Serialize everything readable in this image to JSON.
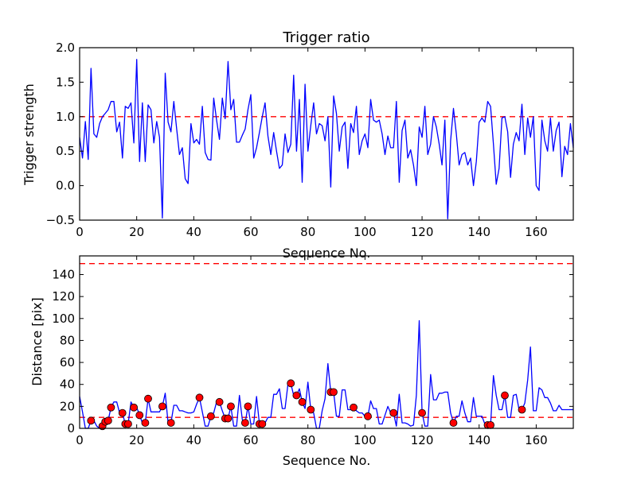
{
  "chart_data": [
    {
      "type": "line",
      "title": "Trigger ratio",
      "xlabel": "Sequence No.",
      "ylabel": "Trigger strength",
      "xlim": [
        0,
        173
      ],
      "ylim": [
        -0.5,
        2.0
      ],
      "xticks": [
        0,
        20,
        40,
        60,
        80,
        100,
        120,
        140,
        160
      ],
      "yticks": [
        -0.5,
        0.0,
        0.5,
        1.0,
        1.5,
        2.0
      ],
      "ytick_labels": [
        "−0.5",
        "0.0",
        "0.5",
        "1.0",
        "1.5",
        "2.0"
      ],
      "grid": false,
      "threshold": {
        "value": 1.0,
        "color": "#ff0000",
        "style": "dashed"
      },
      "series": [
        {
          "name": "trigger strength",
          "color": "#0000ff",
          "values": [
            0.7,
            0.4,
            0.93,
            0.38,
            1.7,
            0.75,
            0.7,
            0.9,
            1.0,
            1.05,
            1.1,
            1.22,
            1.22,
            0.78,
            0.92,
            0.4,
            1.15,
            1.12,
            1.2,
            0.62,
            1.83,
            0.35,
            1.2,
            0.35,
            1.17,
            1.1,
            0.62,
            0.93,
            0.7,
            -0.47,
            1.63,
            0.92,
            0.78,
            1.22,
            0.83,
            0.45,
            0.55,
            0.1,
            0.03,
            0.9,
            0.62,
            0.67,
            0.6,
            1.15,
            0.48,
            0.38,
            0.37,
            1.27,
            0.95,
            0.67,
            1.27,
            0.97,
            1.8,
            1.1,
            1.25,
            0.63,
            0.63,
            0.73,
            0.82,
            1.1,
            1.32,
            0.4,
            0.55,
            0.77,
            1.0,
            1.2,
            0.72,
            0.45,
            0.77,
            0.5,
            0.25,
            0.3,
            0.75,
            0.48,
            0.6,
            1.6,
            0.5,
            1.25,
            0.05,
            1.47,
            0.5,
            0.87,
            1.2,
            0.75,
            0.9,
            0.87,
            0.65,
            1.0,
            -0.02,
            1.3,
            1.05,
            0.5,
            0.85,
            0.92,
            0.25,
            0.9,
            0.77,
            1.15,
            0.45,
            0.65,
            0.75,
            0.55,
            1.25,
            0.95,
            0.92,
            0.95,
            0.75,
            0.45,
            0.72,
            0.55,
            0.55,
            1.22,
            0.05,
            0.8,
            0.95,
            0.4,
            0.52,
            0.3,
            0.0,
            0.85,
            0.7,
            1.15,
            0.45,
            0.6,
            1.0,
            0.85,
            0.6,
            0.3,
            0.95,
            -0.48,
            0.65,
            1.12,
            0.75,
            0.3,
            0.45,
            0.48,
            0.3,
            0.4,
            0.0,
            0.35,
            0.92,
            0.98,
            0.92,
            1.22,
            1.15,
            0.6,
            0.02,
            0.25,
            0.98,
            1.0,
            0.78,
            0.12,
            0.6,
            0.77,
            0.65,
            1.18,
            0.45,
            0.98,
            0.7,
            1.0,
            0.0,
            -0.07,
            0.95,
            0.65,
            0.5,
            0.98,
            0.5,
            0.8,
            0.92,
            0.13,
            0.57,
            0.45,
            0.9,
            0.55
          ]
        }
      ]
    },
    {
      "type": "line",
      "title": "",
      "xlabel": "Sequence No.",
      "ylabel": "Distance [pix]",
      "xlim": [
        0,
        173
      ],
      "ylim": [
        0,
        157
      ],
      "xticks": [
        0,
        20,
        40,
        60,
        80,
        100,
        120,
        140,
        160
      ],
      "yticks": [
        0,
        20,
        40,
        60,
        80,
        100,
        120,
        140
      ],
      "ytick_labels": [
        "0",
        "20",
        "40",
        "60",
        "80",
        "100",
        "120",
        "140"
      ],
      "grid": false,
      "thresholds": [
        {
          "value": 10,
          "color": "#ff0000",
          "style": "dashed"
        },
        {
          "value": 150,
          "color": "#ff0000",
          "style": "dashed"
        }
      ],
      "series": [
        {
          "name": "distance",
          "color": "#0000ff",
          "values": [
            29,
            15,
            0,
            0,
            7,
            7,
            2,
            0,
            2,
            6,
            7,
            19,
            24,
            24,
            14,
            14,
            4,
            4,
            24,
            19,
            19,
            12,
            5,
            5,
            27,
            15,
            15,
            15,
            15,
            20,
            32,
            5,
            5,
            21,
            21,
            16,
            16,
            15,
            14,
            14,
            15,
            22,
            28,
            15,
            2,
            2,
            11,
            14,
            24,
            24,
            16,
            9,
            9,
            20,
            2,
            2,
            30,
            8,
            5,
            20,
            4,
            4,
            29,
            4,
            4,
            5,
            10,
            10,
            31,
            31,
            36,
            18,
            18,
            40,
            41,
            30,
            30,
            36,
            24,
            18,
            42,
            17,
            14,
            0,
            0,
            16,
            27,
            59,
            33,
            33,
            11,
            11,
            35,
            35,
            17,
            17,
            19,
            16,
            14,
            14,
            11,
            11,
            25,
            18,
            18,
            4,
            4,
            12,
            20,
            14,
            14,
            2,
            31,
            5,
            5,
            4,
            2,
            3,
            30,
            98,
            14,
            2,
            2,
            49,
            26,
            26,
            32,
            32,
            33,
            33,
            14,
            5,
            11,
            11,
            25,
            14,
            6,
            6,
            28,
            11,
            11,
            11,
            4,
            3,
            3,
            48,
            30,
            17,
            17,
            30,
            10,
            10,
            30,
            31,
            17,
            17,
            23,
            44,
            74,
            16,
            16,
            37,
            35,
            28,
            28,
            23,
            16,
            16,
            21,
            17,
            17,
            17,
            17,
            17
          ]
        },
        {
          "name": "flagged points",
          "type": "scatter",
          "color": "#ff0000",
          "x": [
            4,
            8,
            9,
            10,
            11,
            15,
            16,
            17,
            19,
            21,
            23,
            24,
            29,
            32,
            42,
            46,
            49,
            51,
            52,
            53,
            58,
            59,
            63,
            64,
            74,
            76,
            78,
            81,
            88,
            89,
            96,
            101,
            110,
            120,
            131,
            143,
            144,
            149,
            155
          ],
          "y": [
            7,
            2,
            6,
            7,
            19,
            14,
            4,
            4,
            19,
            12,
            5,
            27,
            20,
            5,
            28,
            11,
            24,
            9,
            9,
            20,
            5,
            20,
            4,
            4,
            41,
            30,
            24,
            17,
            33,
            33,
            19,
            11,
            14,
            14,
            5,
            3,
            3,
            30,
            17
          ]
        }
      ]
    }
  ]
}
